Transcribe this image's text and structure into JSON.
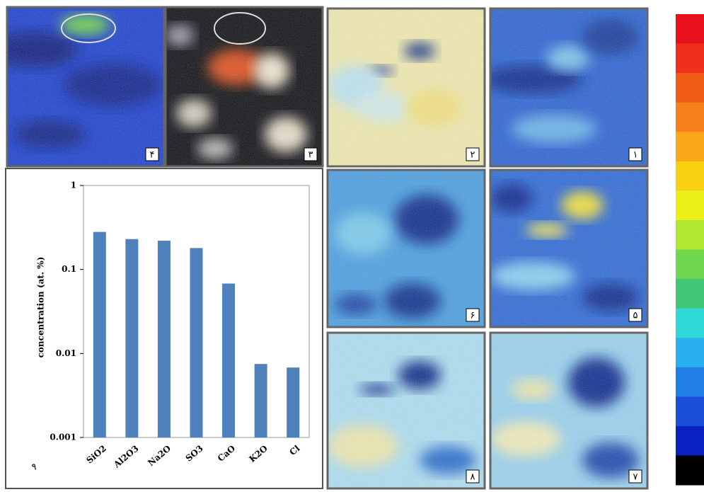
{
  "chart_data": {
    "type": "bar",
    "y_label": "concentration (at. %)",
    "categories": [
      "SiO2",
      "Al2O3",
      "Na2O",
      "SO3",
      "CaO",
      "K2O",
      "Cl"
    ],
    "values": [
      0.28,
      0.23,
      0.22,
      0.18,
      0.068,
      0.0075,
      0.0068
    ],
    "color": "#4f81bd",
    "log_scale": true,
    "ylim": [
      0.001,
      1
    ],
    "yticks": [
      0.001,
      0.01,
      0.1,
      1
    ],
    "grid": false
  },
  "panels": [
    {
      "label": "۴"
    },
    {
      "label": "۳"
    },
    {
      "label": "۲"
    },
    {
      "label": "۱"
    },
    {
      "label": "۶"
    },
    {
      "label": "۵"
    },
    {
      "label": "۸"
    },
    {
      "label": "۷"
    },
    {
      "label": "٩"
    }
  ]
}
